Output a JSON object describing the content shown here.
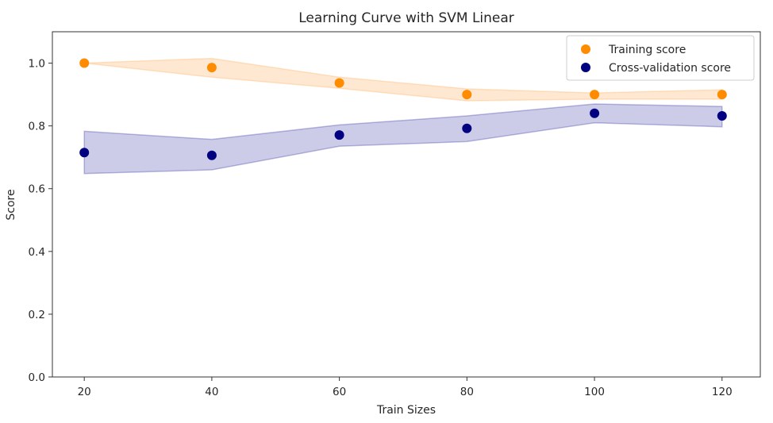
{
  "chart_data": {
    "type": "scatter",
    "title": "Learning Curve with SVM Linear",
    "xlabel": "Train Sizes",
    "ylabel": "Score",
    "xlim": [
      15,
      126
    ],
    "ylim": [
      0.0,
      1.1
    ],
    "x_ticks": [
      20,
      40,
      60,
      80,
      100,
      120
    ],
    "y_ticks": [
      "0.0",
      "0.2",
      "0.4",
      "0.6",
      "0.8",
      "1.0"
    ],
    "grid": false,
    "legend_position": "top-right",
    "x": [
      20,
      40,
      60,
      80,
      100,
      120
    ],
    "series": [
      {
        "name": "Training score",
        "color": "#ff8c00",
        "band_color": "#ffb266",
        "values": [
          1.0,
          0.986,
          0.937,
          0.9,
          0.9,
          0.9
        ],
        "band_lower": [
          1.0,
          0.955,
          0.92,
          0.88,
          0.885,
          0.885
        ],
        "band_upper": [
          1.0,
          1.015,
          0.955,
          0.918,
          0.905,
          0.915
        ]
      },
      {
        "name": "Cross-validation score",
        "color": "#000080",
        "band_color": "#00008b",
        "values": [
          0.715,
          0.706,
          0.771,
          0.792,
          0.84,
          0.832
        ],
        "band_lower": [
          0.648,
          0.66,
          0.735,
          0.75,
          0.81,
          0.797
        ],
        "band_upper": [
          0.783,
          0.757,
          0.803,
          0.832,
          0.87,
          0.862
        ]
      }
    ]
  }
}
